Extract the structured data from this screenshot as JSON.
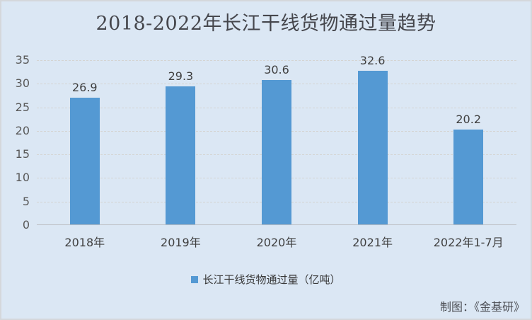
{
  "chart_data": {
    "type": "bar",
    "title": "2018-2022年长江干线货物通过量趋势",
    "categories": [
      "2018年",
      "2019年",
      "2020年",
      "2021年",
      "2022年1-7月"
    ],
    "values": [
      26.9,
      29.3,
      30.6,
      32.6,
      20.2
    ],
    "series": [
      {
        "name": "长江干线货物通过量（亿吨）",
        "values": [
          26.9,
          29.3,
          30.6,
          32.6,
          20.2
        ]
      }
    ],
    "xlabel": "",
    "ylabel": "",
    "ylim": [
      0,
      35
    ],
    "yticks": [
      0,
      5,
      10,
      15,
      20,
      25,
      30,
      35
    ],
    "grid": true,
    "data_labels": true,
    "legend_position": "bottom"
  },
  "legend": {
    "label": "长江干线货物通过量（亿吨）"
  },
  "attribution": "制图：《金基研》",
  "colors": {
    "background": "#dbe7f4",
    "border": "#d4d7db",
    "bar": "#5499d3",
    "gridline": "#d4d4d2",
    "axis_line": "#bcbec2",
    "title_text": "#45464c",
    "tick_text": "#595959",
    "label_text": "#3f3f3f"
  }
}
